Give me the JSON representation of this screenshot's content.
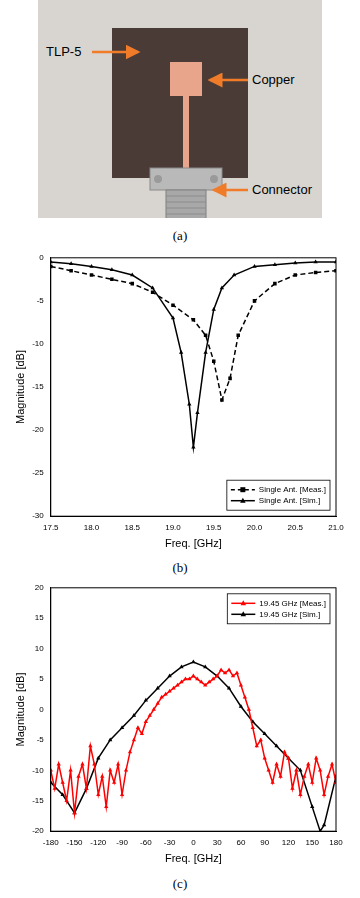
{
  "photo": {
    "labels": {
      "substrate": "TLP-5",
      "patch": "Copper",
      "connector": "Connector"
    },
    "caption": "(a)"
  },
  "chart_data": [
    {
      "type": "line",
      "caption": "(b)",
      "x_label": "Freq. [GHz]",
      "y_label": "Magnitude [dB]",
      "xlim": [
        17.5,
        21.0
      ],
      "xticks": [
        17.5,
        {
          "value": 18,
          "label": "18.0"
        },
        18.5,
        {
          "value": 19,
          "label": "19.0"
        },
        19.5,
        {
          "value": 20,
          "label": "20.0"
        },
        20.5,
        {
          "value": 21,
          "label": "21.0"
        }
      ],
      "ylim": [
        -30,
        0
      ],
      "yticks": [
        -30,
        -25,
        -20,
        -15,
        -10,
        -5,
        0
      ],
      "grid": false,
      "legend": "lower right",
      "series": [
        {
          "name": "Single Ant. [Meas.]",
          "color": "#000000",
          "line_style": "dashed",
          "marker": "square",
          "x": [
            17.5,
            17.75,
            18.0,
            18.25,
            18.5,
            18.75,
            19.0,
            19.25,
            19.4,
            19.5,
            19.6,
            19.7,
            19.8,
            20.0,
            20.25,
            20.5,
            20.75,
            21.0
          ],
          "values": [
            -1.0,
            -1.5,
            -2.0,
            -2.5,
            -3.0,
            -4.0,
            -5.5,
            -7.2,
            -9.0,
            -12.0,
            -16.5,
            -14.0,
            -9.0,
            -5.0,
            -3.0,
            -2.0,
            -1.7,
            -1.5
          ]
        },
        {
          "name": "Single Ant. [Sim.]",
          "color": "#000000",
          "line_style": "solid",
          "marker": "triangle",
          "x": [
            17.5,
            17.75,
            18.0,
            18.25,
            18.5,
            18.75,
            19.0,
            19.1,
            19.2,
            19.25,
            19.3,
            19.4,
            19.5,
            19.6,
            19.75,
            20.0,
            20.25,
            20.5,
            20.75,
            21.0
          ],
          "values": [
            -0.5,
            -0.7,
            -1.0,
            -1.4,
            -2.0,
            -3.5,
            -7.0,
            -11.0,
            -17.0,
            -22.0,
            -18.0,
            -11.0,
            -6.0,
            -3.5,
            -2.0,
            -1.0,
            -0.8,
            -0.6,
            -0.5,
            -0.5
          ]
        }
      ]
    },
    {
      "type": "line",
      "caption": "(c)",
      "x_label": "Freq. [GHz]",
      "y_label": "Magnitude [dB]",
      "xlim": [
        -180,
        180
      ],
      "xticks": [
        -180,
        -150,
        -120,
        -90,
        -60,
        -30,
        0,
        30,
        60,
        90,
        120,
        150,
        180
      ],
      "ylim": [
        -20,
        20
      ],
      "yticks": [
        -20,
        -15,
        -10,
        -5,
        0,
        5,
        10,
        15,
        20
      ],
      "grid": false,
      "legend": "upper right",
      "series": [
        {
          "name": "19.45 GHz [Meas.]",
          "color": "#ff0000",
          "line_style": "solid",
          "marker": "triangle",
          "x": [
            -180,
            -175,
            -170,
            -165,
            -160,
            -155,
            -150,
            -145,
            -140,
            -135,
            -130,
            -125,
            -120,
            -115,
            -110,
            -105,
            -100,
            -95,
            -90,
            -85,
            -80,
            -75,
            -70,
            -65,
            -60,
            -55,
            -50,
            -45,
            -40,
            -35,
            -30,
            -25,
            -20,
            -15,
            -10,
            -5,
            0,
            5,
            10,
            15,
            20,
            25,
            30,
            35,
            40,
            45,
            50,
            55,
            60,
            65,
            70,
            75,
            80,
            85,
            90,
            95,
            100,
            105,
            110,
            115,
            120,
            125,
            130,
            135,
            140,
            145,
            150,
            155,
            160,
            165,
            170,
            175,
            180
          ],
          "values": [
            -10,
            -13,
            -9,
            -12,
            -15,
            -10,
            -17,
            -11,
            -9,
            -13,
            -6,
            -9,
            -14,
            -11,
            -16,
            -10,
            -12,
            -9,
            -14,
            -10,
            -7,
            -5,
            -3,
            -4,
            -2,
            -1,
            0,
            1,
            2,
            2.5,
            3,
            3.5,
            4,
            4.5,
            5,
            5,
            5.5,
            5,
            4.5,
            4,
            4.5,
            5,
            5.5,
            6.5,
            6,
            6.5,
            5.5,
            6,
            4,
            2,
            0,
            -3,
            -6,
            -5,
            -8,
            -10,
            -12,
            -9,
            -11,
            -7,
            -8,
            -13,
            -10,
            -14,
            -11,
            -9,
            -12,
            -8,
            -10,
            -14,
            -11,
            -9,
            -12
          ]
        },
        {
          "name": "19.45 GHz [Sim.]",
          "color": "#000000",
          "line_style": "solid",
          "marker": "triangle",
          "x": [
            -180,
            -165,
            -150,
            -135,
            -120,
            -105,
            -90,
            -75,
            -60,
            -45,
            -30,
            -15,
            0,
            15,
            30,
            45,
            60,
            75,
            90,
            105,
            120,
            135,
            150,
            160,
            165,
            180
          ],
          "values": [
            -12,
            -14,
            -17,
            -13,
            -8,
            -5,
            -3,
            -1,
            1.5,
            3.5,
            5.5,
            7,
            7.8,
            7,
            5.5,
            3.5,
            0.5,
            -2,
            -4,
            -6,
            -8,
            -10,
            -16,
            -20,
            -19,
            -11
          ]
        }
      ]
    }
  ]
}
